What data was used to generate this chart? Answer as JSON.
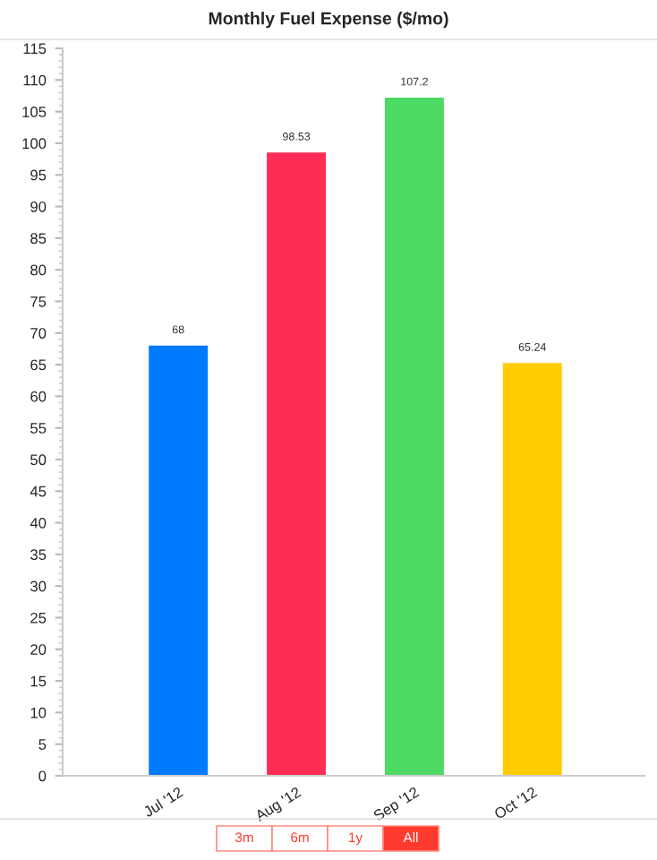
{
  "chart_data": {
    "type": "bar",
    "title": "Monthly Fuel Expense ($/mo)",
    "categories": [
      "Jul '12",
      "Aug '12",
      "Sep '12",
      "Oct '12"
    ],
    "values": [
      68,
      98.53,
      107.2,
      65.24
    ],
    "colors": [
      "#007aff",
      "#ff2d55",
      "#4cd964",
      "#ffcc00"
    ],
    "value_labels": [
      "68",
      "98.53",
      "107.2",
      "65.24"
    ],
    "ylim": [
      0,
      115
    ],
    "yticks": [
      0,
      5,
      10,
      15,
      20,
      25,
      30,
      35,
      40,
      45,
      50,
      55,
      60,
      65,
      70,
      75,
      80,
      85,
      90,
      95,
      100,
      105,
      110,
      115
    ],
    "grid": false,
    "legend": false,
    "annotations": [
      "3m",
      "6m",
      "1y",
      "All"
    ]
  }
}
